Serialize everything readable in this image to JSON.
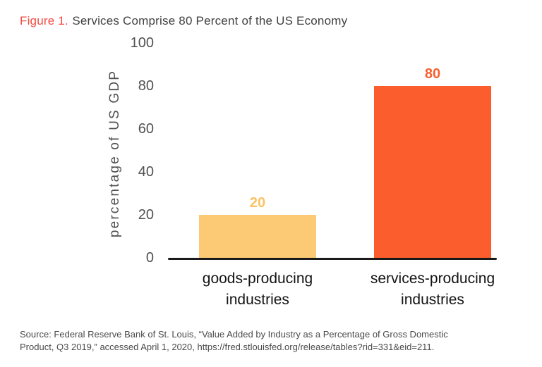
{
  "title": {
    "prefix": "Figure 1.",
    "text": "Services Comprise 80 Percent of the US Economy"
  },
  "chart_data": {
    "type": "bar",
    "title": "Services Comprise 80 Percent of the US Economy",
    "categories": [
      "goods-producing industries",
      "services-producing industries"
    ],
    "values": [
      20,
      80
    ],
    "value_labels": [
      "20",
      "80"
    ],
    "xlabel": "",
    "ylabel": "percentage of US GDP",
    "ylim": [
      0,
      100
    ],
    "yticks": [
      0,
      20,
      40,
      60,
      80,
      100
    ],
    "grid": false,
    "legend": "none",
    "bar_colors": [
      "#FCCA75",
      "#FB5E2C"
    ],
    "value_label_colors": [
      "#FAC364",
      "#F7612F"
    ]
  },
  "source": {
    "text": "Source: Federal Reserve Bank of St. Louis, “Value Added by Industry as a Percentage of Gross Domestic Product, Q3 2019,” accessed April 1, 2020, https://fred.stlouisfed.org/release/tables?rid=331&eid=211."
  },
  "colors": {
    "figure_label_red": "#F14B41",
    "title_gray": "#414042",
    "axis_text_gray": "#515154",
    "category_text": "#141414",
    "axis_line": "#1a1a1a",
    "background": "#ffffff"
  }
}
